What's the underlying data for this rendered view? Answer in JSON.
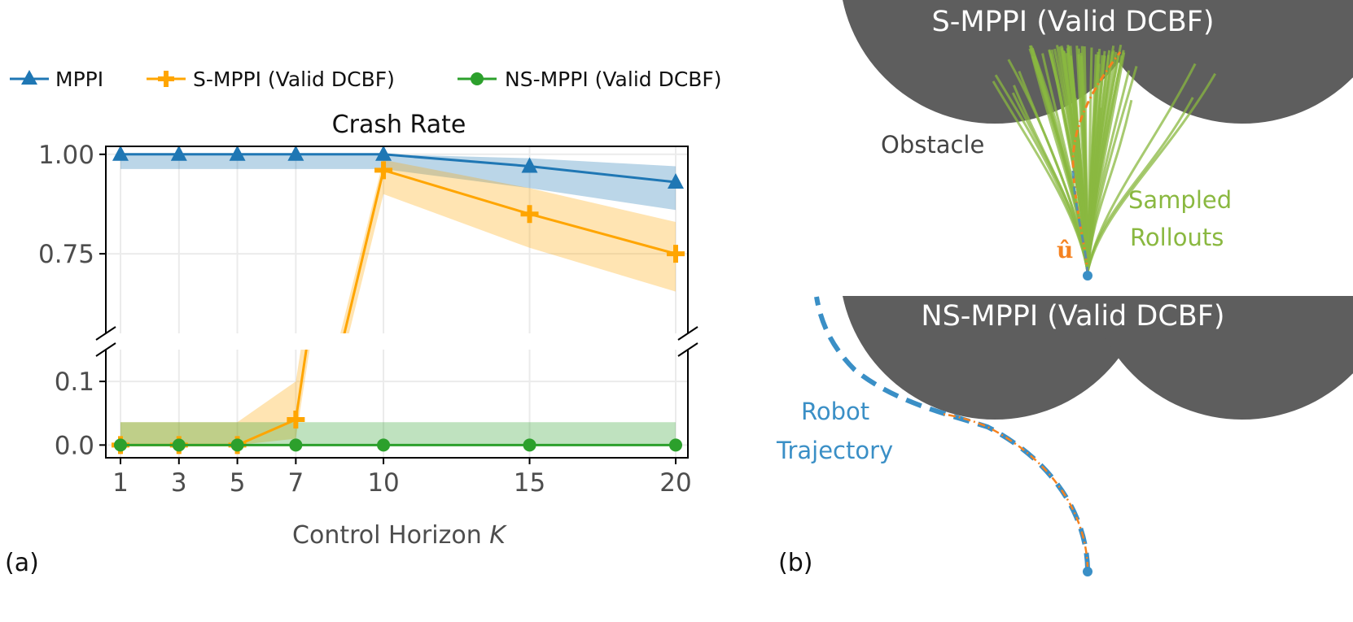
{
  "panel_a_label": "(a)",
  "panel_b_label": "(b)",
  "chart_data": {
    "type": "line",
    "title": "Crash Rate",
    "xlabel": "Control Horizon",
    "xlabel_var": "K",
    "ylabel": "",
    "x": [
      1,
      3,
      5,
      7,
      10,
      15,
      20
    ],
    "x_ticks": [
      "1",
      "3",
      "5",
      "7",
      "10",
      "15",
      "20"
    ],
    "broken_y_axis": true,
    "ylim_upper": [
      0.55,
      1.02
    ],
    "ylim_lower": [
      -0.02,
      0.15
    ],
    "y_ticks_upper": [
      {
        "v": 0.75,
        "label": "0.75"
      },
      {
        "v": 1.0,
        "label": "1.00"
      }
    ],
    "y_ticks_lower": [
      {
        "v": 0.0,
        "label": "0.0"
      },
      {
        "v": 0.1,
        "label": "0.1"
      }
    ],
    "grid": true,
    "legend_placement": "top, above plot",
    "series": [
      {
        "name": "MPPI",
        "color": "#1f77b4",
        "marker": "triangle",
        "values": [
          1.0,
          1.0,
          1.0,
          1.0,
          1.0,
          0.97,
          0.93
        ],
        "band_low": [
          0.963,
          0.963,
          0.963,
          0.963,
          0.963,
          0.915,
          0.86
        ],
        "band_high": [
          1.0,
          1.0,
          1.0,
          1.0,
          1.0,
          0.99,
          0.97
        ]
      },
      {
        "name": "S-MPPI (Valid DCBF)",
        "color": "#ffa500",
        "marker": "plus",
        "values": [
          0.0,
          0.0,
          0.0,
          0.04,
          0.96,
          0.85,
          0.75
        ],
        "band_low": [
          0.0,
          0.0,
          0.0,
          0.01,
          0.9,
          0.765,
          0.655
        ],
        "band_high": [
          0.036,
          0.036,
          0.036,
          0.1,
          0.986,
          0.915,
          0.83
        ]
      },
      {
        "name": "NS-MPPI (Valid DCBF)",
        "color": "#2ca02c",
        "marker": "circle",
        "values": [
          0.0,
          0.0,
          0.0,
          0.0,
          0.0,
          0.0,
          0.0
        ],
        "band_low": [
          0.0,
          0.0,
          0.0,
          0.0,
          0.0,
          0.0,
          0.0
        ],
        "band_high": [
          0.036,
          0.036,
          0.036,
          0.036,
          0.036,
          0.036,
          0.036
        ]
      }
    ]
  },
  "illustration": {
    "top_title": "S-MPPI (Valid DCBF)",
    "bottom_title": "NS-MPPI (Valid DCBF)",
    "obstacle_label": "Obstacle",
    "rollouts_label_1": "Sampled",
    "rollouts_label_2": "Rollouts",
    "nominal_control_label": "û",
    "trajectory_label_1": "Robot",
    "trajectory_label_2": "Trajectory",
    "colors": {
      "obstacle": "#5e5e5e",
      "rollouts": "#8ab840",
      "nominal": "#f58220",
      "trajectory": "#3a8fc6"
    }
  }
}
